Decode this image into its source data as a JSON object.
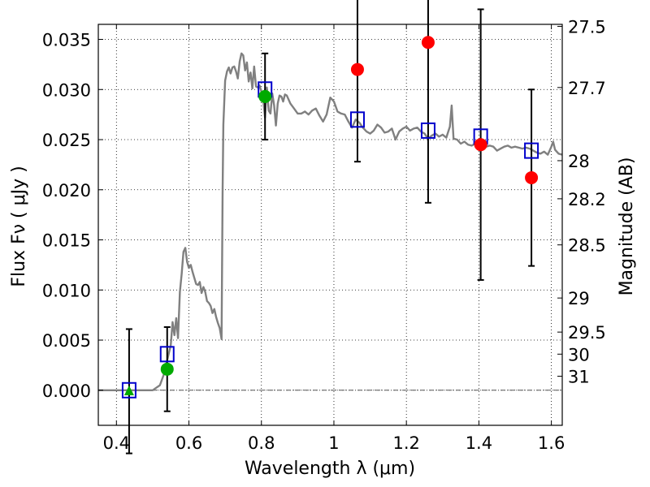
{
  "chart_data": {
    "type": "scatter",
    "xlabel": "Wavelength  λ (μm)",
    "ylabel": "Flux  Fν  ( μJy )",
    "ylabel_right": "Magnitude (AB)",
    "xlim": [
      0.35,
      1.63
    ],
    "ylim": [
      -0.0035,
      0.0365
    ],
    "grid": true,
    "x_ticks": [
      0.4,
      0.6,
      0.8,
      1.0,
      1.2,
      1.4,
      1.6
    ],
    "x_tick_labels": [
      "0.4",
      "0.6",
      "0.8",
      "1",
      "1.2",
      "1.4",
      "1.6"
    ],
    "y_ticks": [
      0.0,
      0.005,
      0.01,
      0.015,
      0.02,
      0.025,
      0.03,
      0.035
    ],
    "y_tick_labels": [
      "0.000",
      "0.005",
      "0.010",
      "0.015",
      "0.020",
      "0.025",
      "0.030",
      "0.035"
    ],
    "right_ticks": [
      {
        "label": "27.5",
        "flux": 0.0363
      },
      {
        "label": "27.7",
        "flux": 0.0302
      },
      {
        "label": "28",
        "flux": 0.0229
      },
      {
        "label": "28.2",
        "flux": 0.0191
      },
      {
        "label": "28.5",
        "flux": 0.0145
      },
      {
        "label": "29",
        "flux": 0.0092
      },
      {
        "label": "29.5",
        "flux": 0.0058
      },
      {
        "label": "30",
        "flux": 0.0036
      },
      {
        "label": "31",
        "flux": 0.0014
      }
    ],
    "model_spectrum": {
      "color": "#808080",
      "x": [
        0.35,
        0.4,
        0.45,
        0.5,
        0.52,
        0.53,
        0.54,
        0.55,
        0.555,
        0.56,
        0.565,
        0.57,
        0.575,
        0.58,
        0.585,
        0.59,
        0.595,
        0.6,
        0.605,
        0.61,
        0.615,
        0.62,
        0.625,
        0.63,
        0.635,
        0.64,
        0.645,
        0.65,
        0.655,
        0.66,
        0.665,
        0.67,
        0.675,
        0.68,
        0.685,
        0.69,
        0.693,
        0.695,
        0.7,
        0.705,
        0.71,
        0.715,
        0.72,
        0.725,
        0.73,
        0.735,
        0.74,
        0.745,
        0.75,
        0.755,
        0.76,
        0.765,
        0.77,
        0.775,
        0.78,
        0.785,
        0.79,
        0.795,
        0.8,
        0.805,
        0.81,
        0.815,
        0.82,
        0.825,
        0.83,
        0.835,
        0.84,
        0.845,
        0.85,
        0.855,
        0.86,
        0.865,
        0.87,
        0.88,
        0.89,
        0.9,
        0.91,
        0.92,
        0.93,
        0.94,
        0.95,
        0.96,
        0.97,
        0.98,
        0.99,
        1.0,
        1.01,
        1.02,
        1.03,
        1.04,
        1.05,
        1.06,
        1.07,
        1.08,
        1.09,
        1.1,
        1.11,
        1.12,
        1.13,
        1.14,
        1.15,
        1.16,
        1.17,
        1.18,
        1.19,
        1.2,
        1.21,
        1.22,
        1.23,
        1.24,
        1.25,
        1.26,
        1.27,
        1.28,
        1.29,
        1.3,
        1.31,
        1.32,
        1.325,
        1.33,
        1.34,
        1.35,
        1.36,
        1.37,
        1.38,
        1.39,
        1.4,
        1.41,
        1.42,
        1.43,
        1.44,
        1.45,
        1.46,
        1.47,
        1.48,
        1.49,
        1.5,
        1.51,
        1.52,
        1.53,
        1.54,
        1.55,
        1.56,
        1.57,
        1.58,
        1.59,
        1.6,
        1.605,
        1.61,
        1.62,
        1.63
      ],
      "y": [
        0.0,
        0.0,
        0.0,
        0.0,
        0.0005,
        0.0015,
        0.003,
        0.0045,
        0.0068,
        0.0055,
        0.0072,
        0.0052,
        0.0098,
        0.0116,
        0.0138,
        0.0142,
        0.0128,
        0.0122,
        0.0125,
        0.0118,
        0.0112,
        0.0106,
        0.0105,
        0.0108,
        0.0097,
        0.0103,
        0.0098,
        0.0089,
        0.0087,
        0.0084,
        0.0077,
        0.0081,
        0.0073,
        0.0067,
        0.0062,
        0.0051,
        0.02,
        0.0265,
        0.0309,
        0.0318,
        0.0322,
        0.0316,
        0.0322,
        0.0323,
        0.0318,
        0.0311,
        0.0328,
        0.0336,
        0.0334,
        0.0319,
        0.0327,
        0.0308,
        0.0317,
        0.0301,
        0.0323,
        0.0303,
        0.0302,
        0.0304,
        0.0298,
        0.029,
        0.0272,
        0.0302,
        0.0279,
        0.0276,
        0.0296,
        0.0284,
        0.0264,
        0.0286,
        0.0294,
        0.0293,
        0.0288,
        0.0295,
        0.0294,
        0.0286,
        0.0281,
        0.0276,
        0.0276,
        0.0278,
        0.0275,
        0.0279,
        0.0281,
        0.0274,
        0.0268,
        0.0275,
        0.0292,
        0.0288,
        0.0278,
        0.0276,
        0.0275,
        0.0268,
        0.0262,
        0.027,
        0.0267,
        0.0262,
        0.0258,
        0.0256,
        0.0259,
        0.0265,
        0.0262,
        0.0257,
        0.0258,
        0.0261,
        0.025,
        0.0258,
        0.0261,
        0.0263,
        0.0259,
        0.0261,
        0.0262,
        0.0258,
        0.0256,
        0.0251,
        0.0254,
        0.0256,
        0.0253,
        0.0255,
        0.0252,
        0.0263,
        0.0284,
        0.0251,
        0.025,
        0.0246,
        0.0248,
        0.0245,
        0.0244,
        0.0246,
        0.0245,
        0.0245,
        0.0243,
        0.0244,
        0.0243,
        0.0239,
        0.0241,
        0.0243,
        0.0244,
        0.0242,
        0.0243,
        0.0242,
        0.0241,
        0.0242,
        0.0241,
        0.0239,
        0.0237,
        0.0236,
        0.0238,
        0.0235,
        0.0243,
        0.0248,
        0.024,
        0.0236,
        0.0235
      ]
    },
    "series": [
      {
        "marker": "open-square",
        "color": "#0000cc",
        "points": [
          {
            "x": 0.435,
            "y": 0.0
          },
          {
            "x": 0.54,
            "y": 0.0036
          },
          {
            "x": 0.81,
            "y": 0.03
          },
          {
            "x": 1.065,
            "y": 0.027
          },
          {
            "x": 1.26,
            "y": 0.0259
          },
          {
            "x": 1.405,
            "y": 0.0253
          },
          {
            "x": 1.545,
            "y": 0.0239
          }
        ]
      },
      {
        "marker": "filled-circle",
        "color": "#00aa00",
        "points": [
          {
            "x": 0.54,
            "y": 0.0021,
            "err": 0.0042
          },
          {
            "x": 0.81,
            "y": 0.0293,
            "err": 0.0043
          }
        ]
      },
      {
        "marker": "filled-triangle",
        "color": "#00aa00",
        "points": [
          {
            "x": 0.435,
            "y": -0.0001,
            "err": 0.0062
          }
        ]
      },
      {
        "marker": "filled-circle",
        "color": "#ff0000",
        "points": [
          {
            "x": 1.065,
            "y": 0.032,
            "err": 0.0092
          },
          {
            "x": 1.26,
            "y": 0.0347,
            "err": 0.016
          },
          {
            "x": 1.405,
            "y": 0.0245,
            "err": 0.0135
          },
          {
            "x": 1.545,
            "y": 0.0212,
            "err": 0.0088
          }
        ]
      }
    ]
  }
}
